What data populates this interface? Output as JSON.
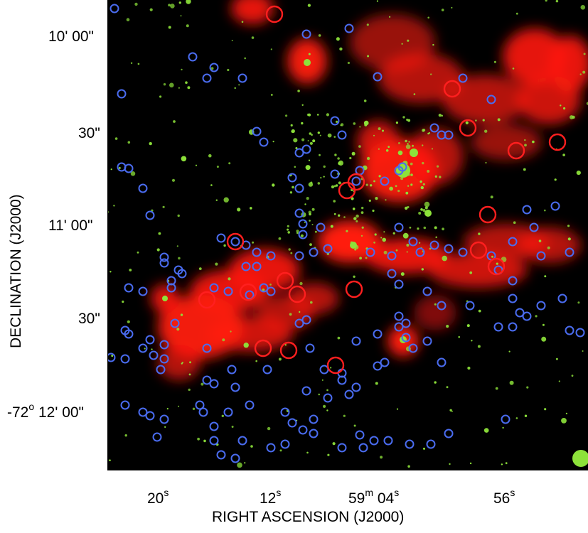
{
  "axes": {
    "x_title": "RIGHT ASCENSION  (J2000)",
    "y_title": "DECLINATION   (J2000)",
    "y_ticks": [
      {
        "main": "10' 00\""
      },
      {
        "main": "30\""
      },
      {
        "main": "11' 00\""
      },
      {
        "main": "30\""
      },
      {
        "prefix": "-72",
        "sup": "o",
        "main": " 12' 00\""
      }
    ],
    "x_ticks": [
      {
        "main": "20",
        "sup": "s"
      },
      {
        "main": "12",
        "sup": "s"
      },
      {
        "prefix": "59",
        "sup1": "m",
        "main": " 04",
        "sup": "s"
      },
      {
        "main": "56",
        "sup": "s"
      }
    ]
  },
  "colors": {
    "background": "#000000",
    "nebula": "#ff1a10",
    "stars": "#8de23a",
    "red_circles": "#ff1f1f",
    "blue_circles": "#4a6cf0"
  }
}
